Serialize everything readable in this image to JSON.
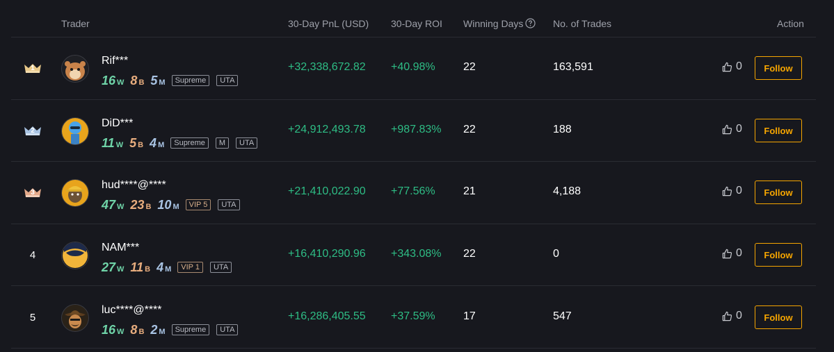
{
  "header": {
    "trader": "Trader",
    "pnl": "30-Day PnL (USD)",
    "roi": "30-Day ROI",
    "winning_days": "Winning Days",
    "trades": "No. of Trades",
    "action": "Action"
  },
  "colors": {
    "positive": "#2ebd85",
    "accent": "#f7a600",
    "background": "#17181e"
  },
  "rows": [
    {
      "rank": "1",
      "name": "Rif***",
      "wins": "16",
      "wins_unit": "W",
      "b": "8",
      "b_unit": "B",
      "m": "5",
      "m_unit": "M",
      "badges": [
        "Supreme",
        "UTA"
      ],
      "pnl": "+32,338,672.82",
      "roi": "+40.98%",
      "winning_days": "22",
      "trades": "163,591",
      "likes": "0",
      "follow": "Follow",
      "avatar_icon": "hamster-avatar-icon"
    },
    {
      "rank": "2",
      "name": "DiD***",
      "wins": "11",
      "wins_unit": "W",
      "b": "5",
      "b_unit": "B",
      "m": "4",
      "m_unit": "M",
      "badges": [
        "Supreme",
        "M",
        "UTA"
      ],
      "pnl": "+24,912,493.78",
      "roi": "+987.83%",
      "winning_days": "22",
      "trades": "188",
      "likes": "0",
      "follow": "Follow",
      "avatar_icon": "robot-avatar-icon"
    },
    {
      "rank": "3",
      "name": "hud****@****",
      "wins": "47",
      "wins_unit": "W",
      "b": "23",
      "b_unit": "B",
      "m": "10",
      "m_unit": "M",
      "badges": [
        "VIP 5",
        "UTA"
      ],
      "pnl": "+21,410,022.90",
      "roi": "+77.56%",
      "winning_days": "21",
      "trades": "4,188",
      "likes": "0",
      "follow": "Follow",
      "avatar_icon": "worker-avatar-icon"
    },
    {
      "rank": "4",
      "name": "NAM***",
      "wins": "27",
      "wins_unit": "W",
      "b": "11",
      "b_unit": "B",
      "m": "4",
      "m_unit": "M",
      "badges": [
        "VIP 1",
        "UTA"
      ],
      "pnl": "+16,410,290.96",
      "roi": "+343.08%",
      "winning_days": "22",
      "trades": "0",
      "likes": "0",
      "follow": "Follow",
      "avatar_icon": "moon-face-avatar-icon"
    },
    {
      "rank": "5",
      "name": "luc****@****",
      "wins": "16",
      "wins_unit": "W",
      "b": "8",
      "b_unit": "B",
      "m": "2",
      "m_unit": "M",
      "badges": [
        "Supreme",
        "UTA"
      ],
      "pnl": "+16,286,405.55",
      "roi": "+37.59%",
      "winning_days": "17",
      "trades": "547",
      "likes": "0",
      "follow": "Follow",
      "avatar_icon": "cowboy-avatar-icon"
    }
  ]
}
